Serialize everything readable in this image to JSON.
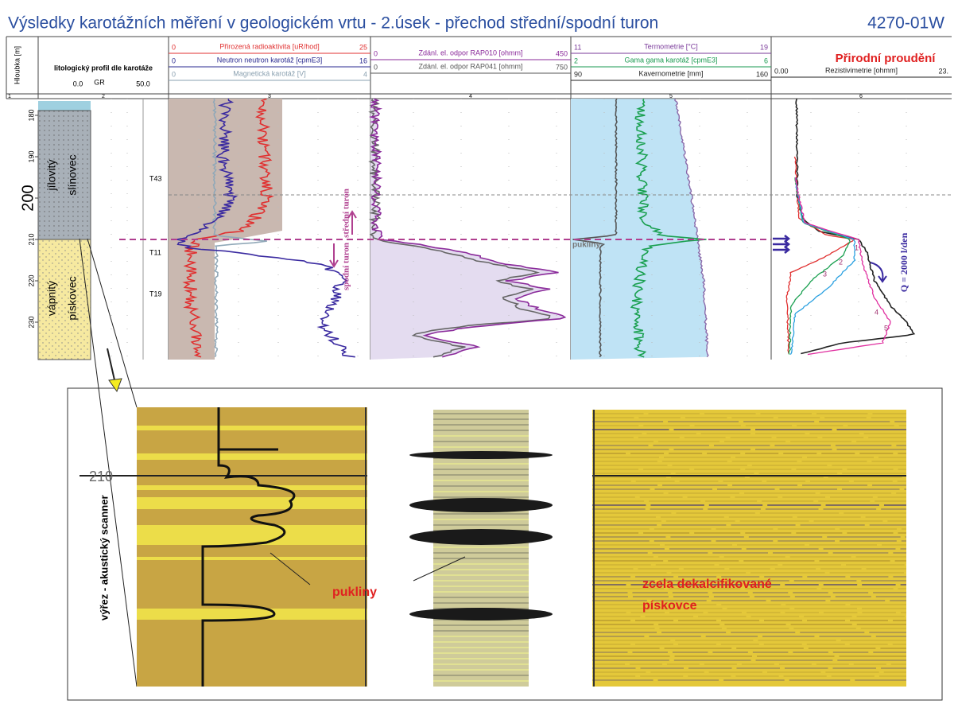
{
  "title": "Výsledky karotážních měření v geologickém vrtu - 2.úsek - přechod střední/spodní turon",
  "code": "4270-01W",
  "header": {
    "depth": "Hloubka [m]",
    "litho": {
      "label": "litologický profil dle karotáže",
      "min": "0.0",
      "curve": "GR",
      "max": "50.0"
    },
    "tracks": [
      {
        "curves": [
          {
            "min": "0",
            "label": "Přirozená radioaktivita [uR/hod]",
            "max": "25",
            "color": "#e03030"
          },
          {
            "min": "0",
            "label": "Neutron neutron karotáž [cpmE3]",
            "max": "16",
            "color": "#2a2a90"
          },
          {
            "min": "0",
            "label": "Magnetická karotáž [V]",
            "max": "4",
            "color": "#8aa0b0"
          }
        ]
      },
      {
        "curves": [
          {
            "min": "0",
            "label": "Zdánl. el. odpor RAP010 [ohmm]",
            "max": "450",
            "color": "#8a2a9a"
          },
          {
            "min": "0",
            "label": "Zdánl. el. odpor RAP041 [ohmm]",
            "max": "750",
            "color": "#555555"
          }
        ]
      },
      {
        "curves": [
          {
            "min": "11",
            "label": "Termometrie [°C]",
            "max": "19",
            "color": "#7a3a9a"
          },
          {
            "min": "2",
            "label": "Gama gama karotáž [cpmE3]",
            "max": "6",
            "color": "#1a9a50"
          },
          {
            "min": "90",
            "label": "Kavernometrie [mm]",
            "max": "160",
            "color": "#222222"
          }
        ]
      },
      {
        "title": "Přirodní proudění",
        "curves": [
          {
            "min": "0.00",
            "label": "Rezistivimetrie [ohmm]",
            "max": "23.",
            "color": "#222222"
          }
        ]
      }
    ]
  },
  "column_numbers": [
    "1",
    "2",
    "3",
    "4",
    "5",
    "6"
  ],
  "depths": [
    180,
    190,
    200,
    210,
    220,
    230
  ],
  "lithology": [
    {
      "line1": "jílovitý",
      "line2": "slínovec"
    },
    {
      "line1": "vápnitý",
      "line2": "pískovec"
    }
  ],
  "horizons": [
    "T43",
    "T11",
    "T19"
  ],
  "annotations": {
    "upper": "střední turon",
    "lower": "spodní turon",
    "fractures": "pukliny",
    "flow": "Q = 2000 l/den",
    "curves": [
      "1",
      "2",
      "3",
      "4",
      "5"
    ]
  },
  "scanner": {
    "label": "výřez - akustický scanner",
    "depth": "210",
    "fractures": "pukliny",
    "note1": "zcela dekalcifikované",
    "note2": "pískovce"
  }
}
